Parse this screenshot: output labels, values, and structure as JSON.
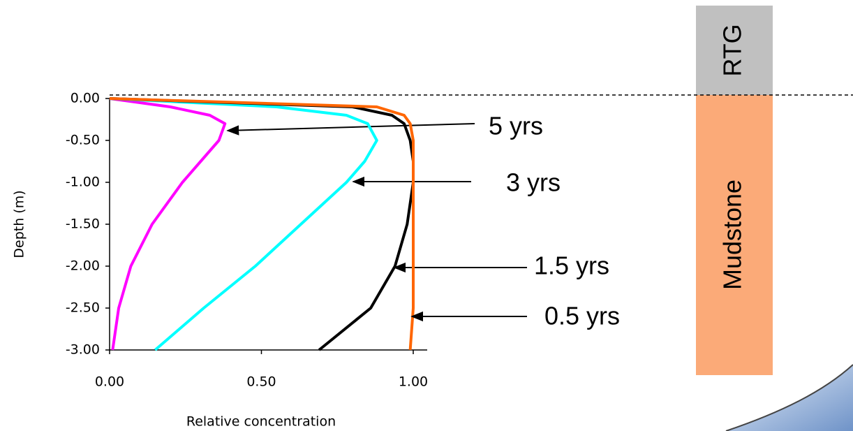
{
  "chart_data": {
    "type": "line",
    "x_label": "Relative concentration",
    "y_label": "Depth (m)",
    "y": [
      0,
      -0.1,
      -0.2,
      -0.3,
      -0.5,
      -0.75,
      -1.0,
      -1.5,
      -2.0,
      -2.5,
      -3.0
    ],
    "series": [
      {
        "name": "5 yrs",
        "color": "#ff00ff",
        "x": [
          0,
          0.2,
          0.33,
          0.38,
          0.36,
          0.3,
          0.24,
          0.14,
          0.07,
          0.03,
          0.01
        ]
      },
      {
        "name": "3 yrs",
        "color": "#00ffff",
        "x": [
          0,
          0.55,
          0.78,
          0.85,
          0.88,
          0.84,
          0.78,
          0.63,
          0.48,
          0.31,
          0.15
        ]
      },
      {
        "name": "1.5 yrs",
        "color": "#000000",
        "x": [
          0,
          0.8,
          0.93,
          0.97,
          0.99,
          1.0,
          1.0,
          0.98,
          0.94,
          0.86,
          0.69
        ]
      },
      {
        "name": "0.5 yrs",
        "color": "#ff6600",
        "x": [
          0,
          0.88,
          0.97,
          0.99,
          1.0,
          1.0,
          1.0,
          1.0,
          1.0,
          1.0,
          0.99
        ]
      }
    ],
    "xlim": [
      0,
      1.0
    ],
    "ylim": [
      -3.0,
      0
    ],
    "xticks": [
      {
        "value": 0,
        "label": "0.00"
      },
      {
        "value": 0.5,
        "label": "0.50"
      },
      {
        "value": 1.0,
        "label": "1.00"
      }
    ],
    "yticks": [
      {
        "value": 0,
        "label": "0.00"
      },
      {
        "value": -0.5,
        "label": "-0.50"
      },
      {
        "value": -1.0,
        "label": "-1.00"
      },
      {
        "value": -1.5,
        "label": "-1.50"
      },
      {
        "value": -2.0,
        "label": "-2.00"
      },
      {
        "value": -2.5,
        "label": "-2.50"
      },
      {
        "value": -3.0,
        "label": "-3.00"
      }
    ],
    "layers": {
      "top": "RTG",
      "bottom": "Mudstone"
    }
  }
}
